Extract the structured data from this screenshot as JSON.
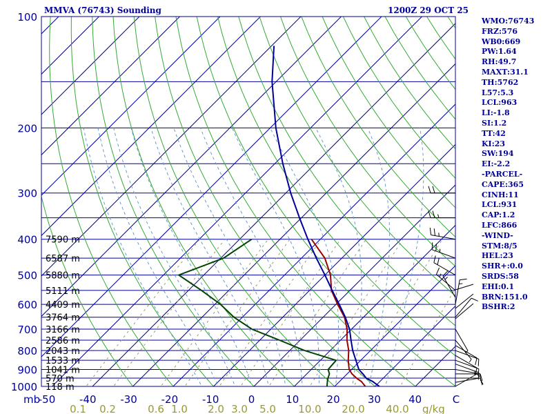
{
  "header": {
    "station": "MMVA (76743) Sounding",
    "datetime": "1200Z 29 OCT 25"
  },
  "indices": [
    "WMO:76743",
    "FRZ:576",
    "WB0:669",
    "PW:1.64",
    "RH:49.7",
    "MAXT:31.1",
    "TH:5762",
    "L57:5.3",
    "LCL:963",
    "LI:-1.8",
    "SI:1.2",
    "TT:42",
    "KI:23",
    "SW:194",
    "EI:-2.2",
    "-PARCEL-",
    "CAPE:365",
    "CINH:11",
    "LCL:931",
    "CAP:1.2",
    "LFC:866",
    "-WIND-",
    "STM:8/5",
    "HEL:23",
    "SHR+:0.0",
    "SRDS:58",
    "EHI:0.1",
    "BRN:151.0",
    "BSHR:2"
  ],
  "colors": {
    "frame": "#000099",
    "isobar": "#000099",
    "isotherm": "#000099",
    "dry_adiabat": "#33aa33",
    "moist_adiabat": "#6699cc",
    "mixing_ratio": "#999966",
    "temperature": "#990000",
    "dewpoint": "#004400",
    "virtual_temp": "#000099",
    "wind_barb": "#000000",
    "label_text": "#000099",
    "mixratio_text": "#999933"
  },
  "chart_data": {
    "type": "skew-t",
    "pressure_axis": {
      "unit": "mb",
      "range": [
        1000,
        100
      ],
      "ticks": [
        100,
        200,
        300,
        400,
        500,
        600,
        700,
        800,
        900,
        1000
      ],
      "tick_labels": [
        "100",
        "200",
        "300",
        "400",
        "500",
        "600",
        "700",
        "800",
        "900",
        "1000"
      ],
      "unit_label": "mb"
    },
    "temperature_axis": {
      "unit": "C",
      "range": [
        -50,
        50
      ],
      "ticks": [
        -50,
        -40,
        -30,
        -20,
        -10,
        0,
        10,
        20,
        30,
        40,
        50
      ],
      "tick_labels": [
        "-50",
        "-40",
        "-30",
        "-20",
        "-10",
        "0",
        "10",
        "20",
        "30",
        "40",
        "C"
      ]
    },
    "mixing_ratio_labels": {
      "values": [
        0.1,
        0.2,
        0.6,
        1.0,
        2.0,
        3.0,
        5.0,
        10.0,
        20.0,
        40.0
      ],
      "labels": [
        "0.1",
        "0.2",
        "0.6",
        "1.0",
        "2.0",
        "3.0",
        "5.0",
        "10.0",
        "20.0",
        "40.0"
      ],
      "unit": "g/kg"
    },
    "height_labels": [
      {
        "p": 1000,
        "text": "118 m"
      },
      {
        "p": 950,
        "text": "570 m"
      },
      {
        "p": 900,
        "text": "1041 m"
      },
      {
        "p": 850,
        "text": "1533 m"
      },
      {
        "p": 800,
        "text": "2043 m"
      },
      {
        "p": 750,
        "text": "2586 m"
      },
      {
        "p": 700,
        "text": "3166 m"
      },
      {
        "p": 650,
        "text": "3764 m"
      },
      {
        "p": 600,
        "text": "4409 m"
      },
      {
        "p": 550,
        "text": "5111 m"
      },
      {
        "p": 500,
        "text": "5880 m"
      },
      {
        "p": 450,
        "text": "6587 m"
      },
      {
        "p": 400,
        "text": "7590 m"
      }
    ],
    "series": [
      {
        "kind": "temperature",
        "points": [
          [
            1000,
            27.6
          ],
          [
            970,
            25.4
          ],
          [
            950,
            23.4
          ],
          [
            925,
            21.2
          ],
          [
            900,
            19.4
          ],
          [
            850,
            16.9
          ],
          [
            800,
            14.6
          ],
          [
            750,
            11.6
          ],
          [
            700,
            8.9
          ],
          [
            650,
            5.3
          ],
          [
            600,
            0.4
          ],
          [
            550,
            -4.6
          ],
          [
            500,
            -8.6
          ],
          [
            450,
            -14.2
          ],
          [
            400,
            -22.2
          ]
        ]
      },
      {
        "kind": "dewpoint",
        "points": [
          [
            1000,
            18.1
          ],
          [
            970,
            17.0
          ],
          [
            950,
            16.3
          ],
          [
            925,
            15.6
          ],
          [
            900,
            14.2
          ],
          [
            850,
            13.9
          ],
          [
            800,
            3.7
          ],
          [
            750,
            -5.1
          ],
          [
            700,
            -14.7
          ],
          [
            650,
            -22.1
          ],
          [
            600,
            -28.6
          ],
          [
            550,
            -36.8
          ],
          [
            500,
            -46.2
          ],
          [
            450,
            -39.3
          ],
          [
            400,
            -37.0
          ]
        ]
      },
      {
        "kind": "virtual_temperature",
        "points": [
          [
            1000,
            31.1
          ],
          [
            970,
            28.2
          ],
          [
            950,
            25.8
          ],
          [
            925,
            23.9
          ],
          [
            900,
            21.8
          ],
          [
            850,
            18.8
          ],
          [
            800,
            15.6
          ],
          [
            750,
            12.6
          ],
          [
            700,
            9.5
          ],
          [
            650,
            5.5
          ],
          [
            600,
            0.8
          ],
          [
            550,
            -4.4
          ],
          [
            500,
            -10.0
          ],
          [
            450,
            -16.3
          ],
          [
            400,
            -23.1
          ],
          [
            350,
            -30.5
          ],
          [
            300,
            -38.8
          ],
          [
            250,
            -48.0
          ],
          [
            200,
            -58.6
          ],
          [
            150,
            -71.0
          ],
          [
            120,
            -79.4
          ]
        ]
      }
    ],
    "wind_barbs": [
      {
        "p": 1000,
        "dir": 60,
        "spd": 5
      },
      {
        "p": 975,
        "dir": 80,
        "spd": 10
      },
      {
        "p": 950,
        "dir": 90,
        "spd": 10
      },
      {
        "p": 925,
        "dir": 90,
        "spd": 10
      },
      {
        "p": 900,
        "dir": 100,
        "spd": 10
      },
      {
        "p": 870,
        "dir": 110,
        "spd": 15
      },
      {
        "p": 850,
        "dir": 110,
        "spd": 10
      },
      {
        "p": 825,
        "dir": 120,
        "spd": 10
      },
      {
        "p": 800,
        "dir": 110,
        "spd": 10
      },
      {
        "p": 775,
        "dir": 120,
        "spd": 10
      },
      {
        "p": 750,
        "dir": 140,
        "spd": 5
      },
      {
        "p": 700,
        "dir": 150,
        "spd": 5
      },
      {
        "p": 650,
        "dir": 40,
        "spd": 10
      },
      {
        "p": 600,
        "dir": 10,
        "spd": 15
      },
      {
        "p": 575,
        "dir": 330,
        "spd": 15
      },
      {
        "p": 550,
        "dir": 310,
        "spd": 15
      },
      {
        "p": 500,
        "dir": 300,
        "spd": 20
      },
      {
        "p": 450,
        "dir": 290,
        "spd": 25
      },
      {
        "p": 400,
        "dir": 280,
        "spd": 25
      },
      {
        "p": 350,
        "dir": 270,
        "spd": 25
      },
      {
        "p": 300,
        "dir": 270,
        "spd": 20
      }
    ]
  }
}
